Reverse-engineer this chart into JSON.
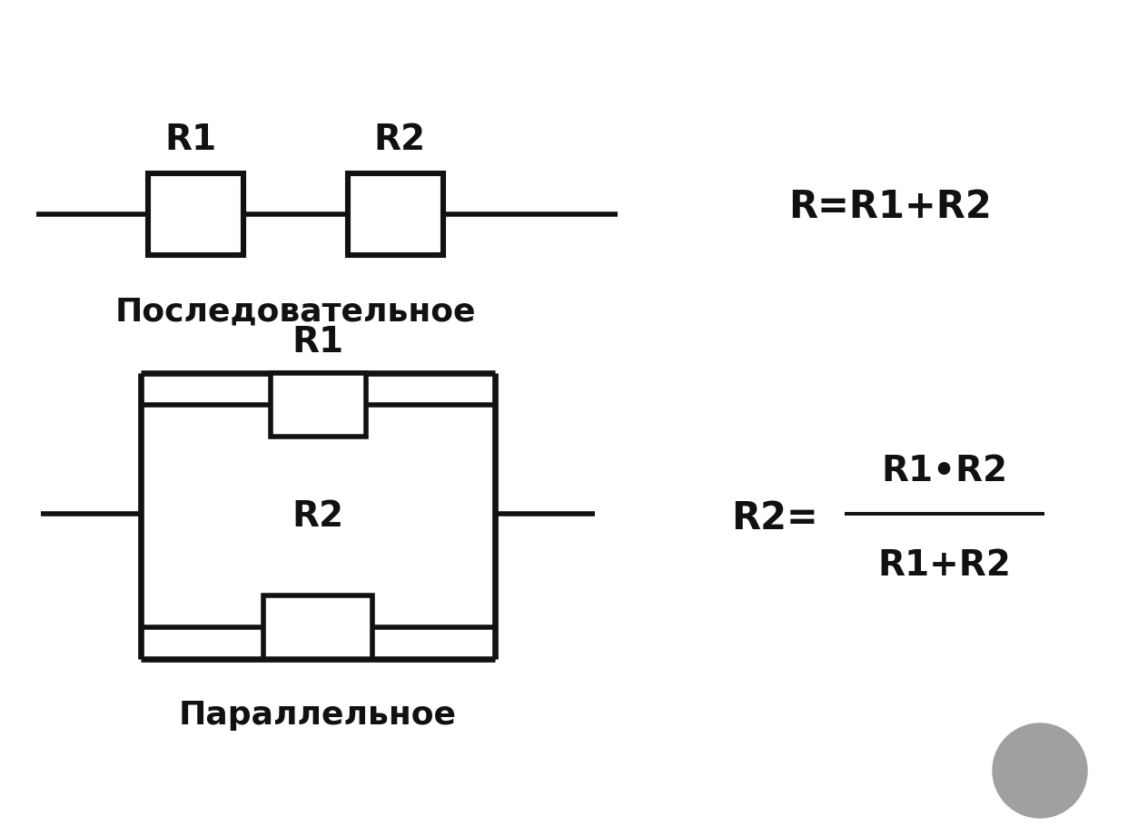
{
  "bg_color": "#ffffff",
  "line_color": "#111111",
  "text_color": "#111111",
  "series_label": "Последовательное",
  "parallel_label": "Параллельное",
  "series_formula": "R=R1+R2",
  "parallel_formula_lhs": "R2=",
  "parallel_formula_num": "R1•R2",
  "parallel_formula_den": "R1+R2",
  "r1_label": "R1",
  "r2_label": "R2",
  "lw": 4.0,
  "fig_w": 12.42,
  "fig_h": 9.21
}
